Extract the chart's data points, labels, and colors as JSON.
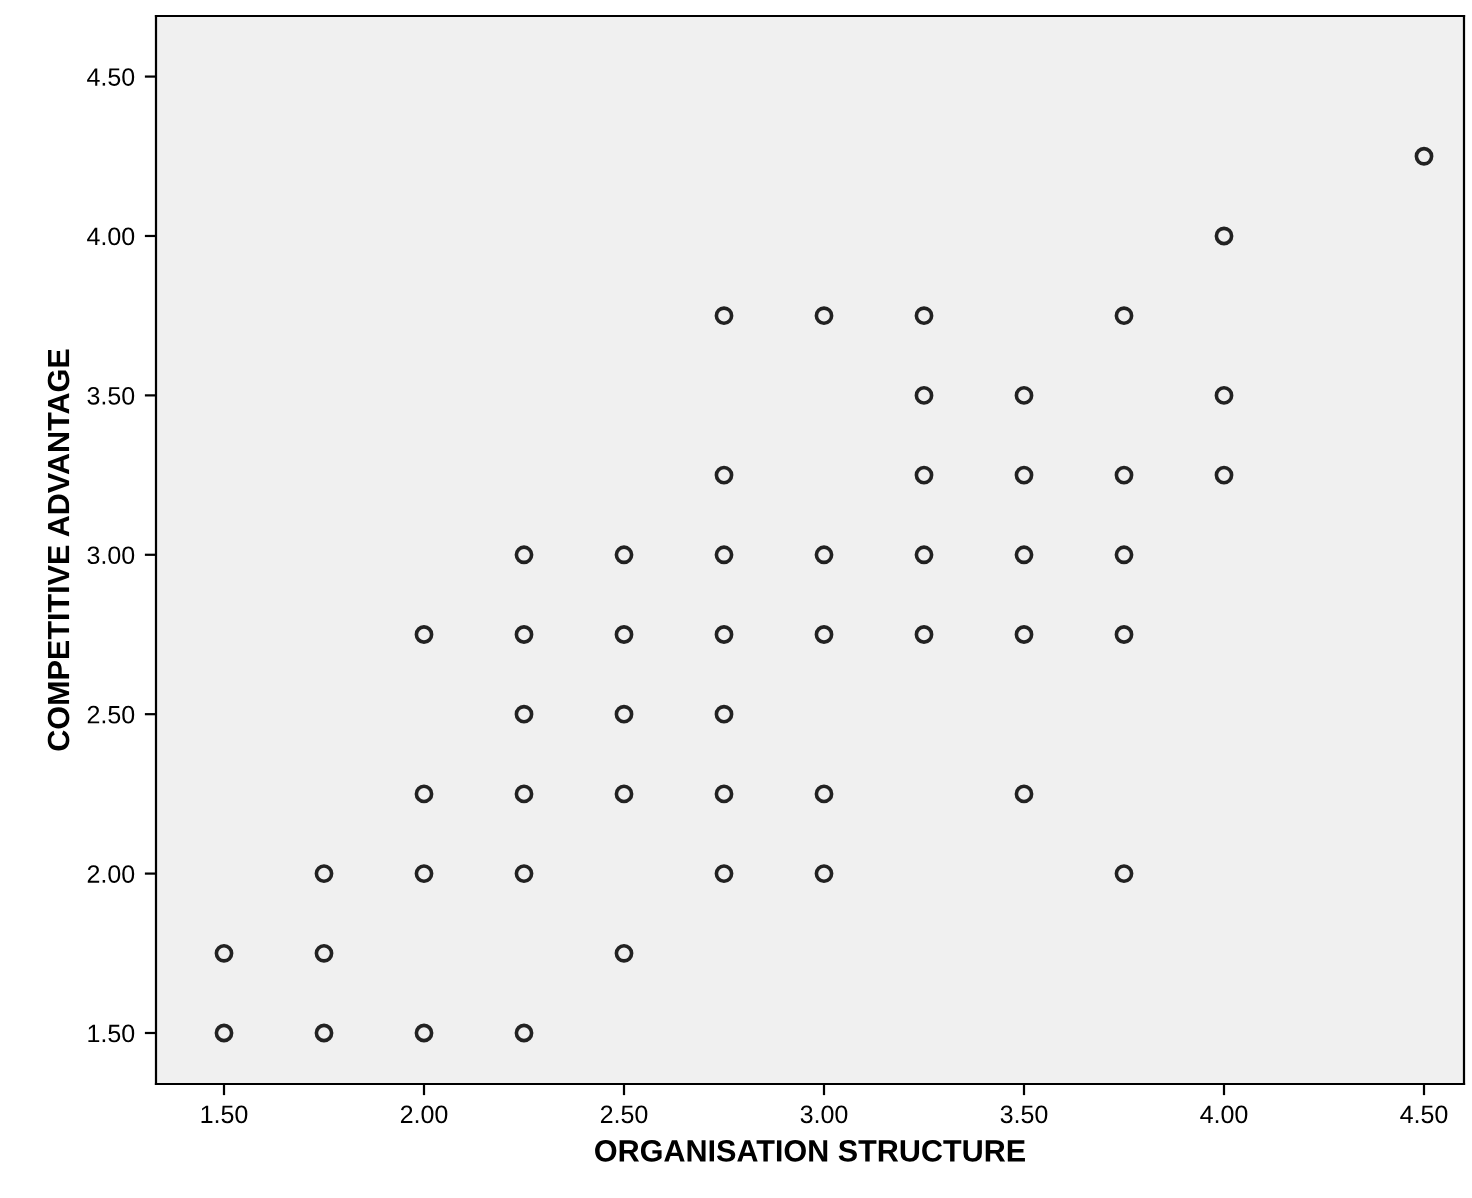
{
  "chart_data": {
    "type": "scatter",
    "xlabel": "ORGANISATION STRUCTURE",
    "ylabel": "COMPETITIVE ADVANTAGE",
    "marker": "circle",
    "grid": false,
    "xlim": [
      1.33,
      4.6
    ],
    "ylim": [
      1.34,
      4.69
    ],
    "xticks": [
      {
        "value": 1.5,
        "label": "1.50"
      },
      {
        "value": 2.0,
        "label": "2.00"
      },
      {
        "value": 2.5,
        "label": "2.50"
      },
      {
        "value": 3.0,
        "label": "3.00"
      },
      {
        "value": 3.5,
        "label": "3.50"
      },
      {
        "value": 4.0,
        "label": "4.00"
      },
      {
        "value": 4.5,
        "label": "4.50"
      }
    ],
    "yticks": [
      {
        "value": 1.5,
        "label": "1.50"
      },
      {
        "value": 2.0,
        "label": "2.00"
      },
      {
        "value": 2.5,
        "label": "2.50"
      },
      {
        "value": 3.0,
        "label": "3.00"
      },
      {
        "value": 3.5,
        "label": "3.50"
      },
      {
        "value": 4.0,
        "label": "4.00"
      },
      {
        "value": 4.5,
        "label": "4.50"
      }
    ],
    "series": [
      {
        "color": "#222222",
        "x": [
          1.5,
          1.5,
          1.75,
          1.75,
          1.75,
          2.0,
          2.0,
          2.0,
          2.0,
          2.25,
          2.25,
          2.25,
          2.25,
          2.25,
          2.25,
          2.5,
          2.5,
          2.5,
          2.5,
          2.5,
          2.75,
          2.75,
          2.75,
          2.75,
          2.75,
          2.75,
          2.75,
          3.0,
          3.0,
          3.0,
          3.0,
          3.0,
          3.25,
          3.25,
          3.25,
          3.25,
          3.25,
          3.5,
          3.5,
          3.5,
          3.5,
          3.5,
          3.75,
          3.75,
          3.75,
          3.75,
          3.75,
          4.0,
          4.0,
          4.0,
          4.5
        ],
        "values": [
          1.5,
          1.75,
          1.5,
          1.75,
          2.0,
          1.5,
          2.0,
          2.25,
          2.75,
          1.5,
          2.0,
          2.25,
          2.5,
          2.75,
          3.0,
          1.75,
          2.25,
          2.5,
          2.75,
          3.0,
          2.0,
          2.25,
          2.5,
          2.75,
          3.0,
          3.25,
          3.75,
          2.0,
          2.25,
          2.75,
          3.0,
          3.75,
          2.75,
          3.0,
          3.25,
          3.5,
          3.75,
          2.25,
          2.75,
          3.0,
          3.25,
          3.5,
          2.0,
          2.75,
          3.0,
          3.25,
          3.75,
          3.25,
          3.5,
          4.0,
          4.25
        ]
      }
    ]
  }
}
